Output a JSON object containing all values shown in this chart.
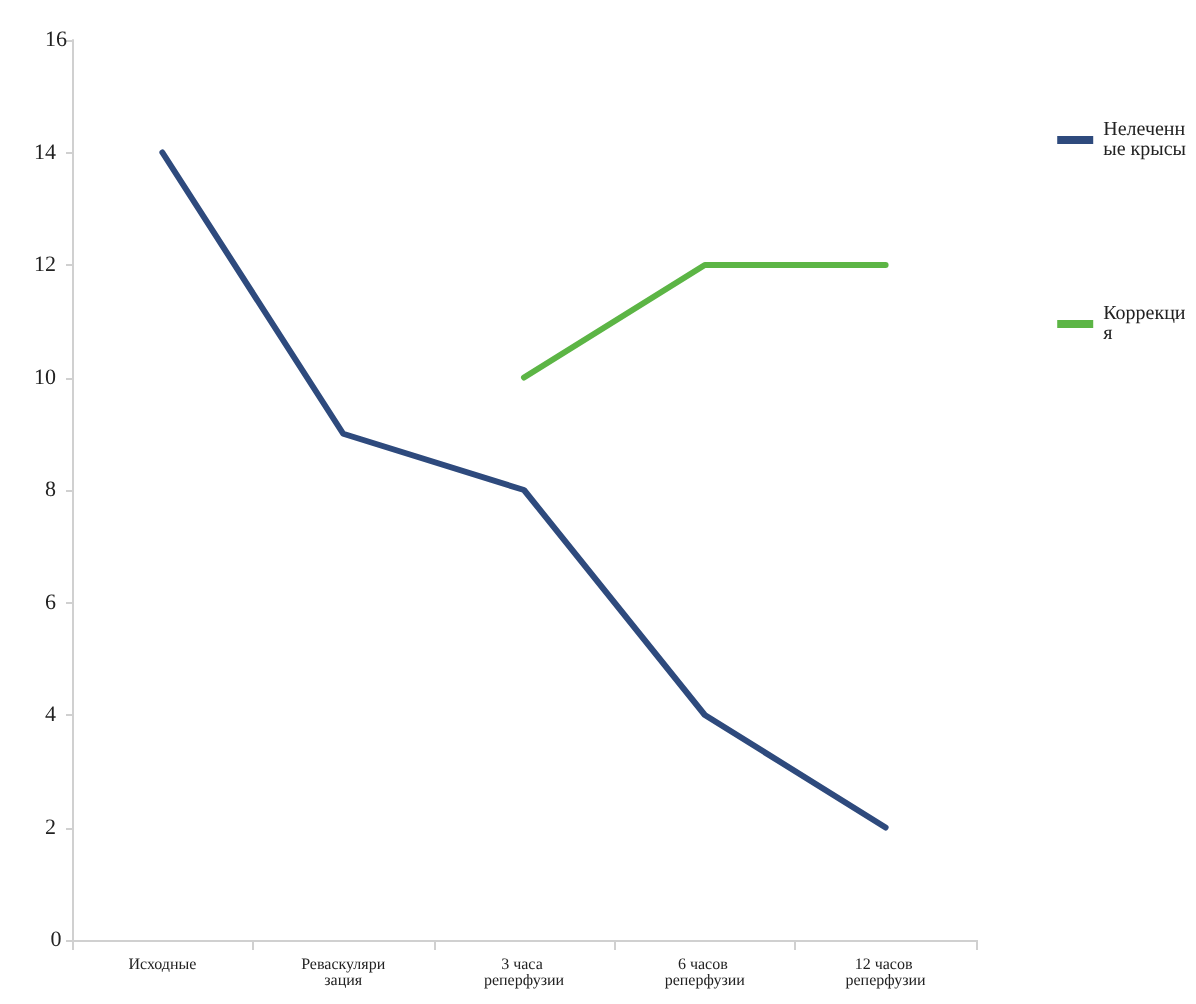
{
  "chart_data": {
    "type": "line",
    "categories": [
      "Исходные",
      "Реваскуляризация",
      "3 часа реперфузии",
      "6 часов реперфузии",
      "12 часов реперфузии"
    ],
    "series": [
      {
        "name": "Нелеченные крысы",
        "color": "#2e4a7d",
        "values": [
          14,
          9,
          8,
          4,
          2
        ]
      },
      {
        "name": "Коррекция",
        "color": "#5cb545",
        "values": [
          null,
          null,
          10,
          12,
          12
        ]
      }
    ],
    "ylim": [
      0,
      16
    ],
    "yticks": [
      0,
      2,
      4,
      6,
      8,
      10,
      12,
      14,
      16
    ],
    "grid": false,
    "legend": "right",
    "marker": "none",
    "line_style": "solid"
  }
}
